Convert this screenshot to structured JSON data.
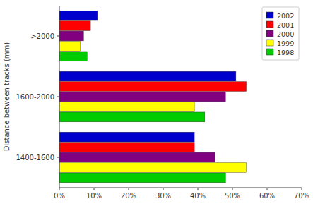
{
  "chart_data": {
    "type": "bar",
    "orientation": "horizontal",
    "categories": [
      ">2000",
      "1600-2000",
      "1400-1600"
    ],
    "series": [
      {
        "name": "2002",
        "color": "#0000cc",
        "values": [
          11,
          51,
          39
        ]
      },
      {
        "name": "2001",
        "color": "#ff0000",
        "values": [
          9,
          54,
          39
        ]
      },
      {
        "name": "2000",
        "color": "#800080",
        "values": [
          7,
          48,
          45
        ]
      },
      {
        "name": "1999",
        "color": "#ffff00",
        "values": [
          6,
          39,
          54
        ]
      },
      {
        "name": "1998",
        "color": "#00cc00",
        "values": [
          8,
          42,
          48
        ]
      }
    ],
    "ylabel": "Distance between tracks (mm)",
    "xlim": [
      0,
      70
    ],
    "xticks": [
      {
        "value": 0,
        "label": "0%"
      },
      {
        "value": 10,
        "label": "10%"
      },
      {
        "value": 20,
        "label": "20%"
      },
      {
        "value": 30,
        "label": "30%"
      },
      {
        "value": 40,
        "label": "40%"
      },
      {
        "value": 50,
        "label": "50%"
      },
      {
        "value": 60,
        "label": "60%"
      },
      {
        "value": 70,
        "label": "70%"
      }
    ],
    "legend": "upper right",
    "grid": false
  }
}
